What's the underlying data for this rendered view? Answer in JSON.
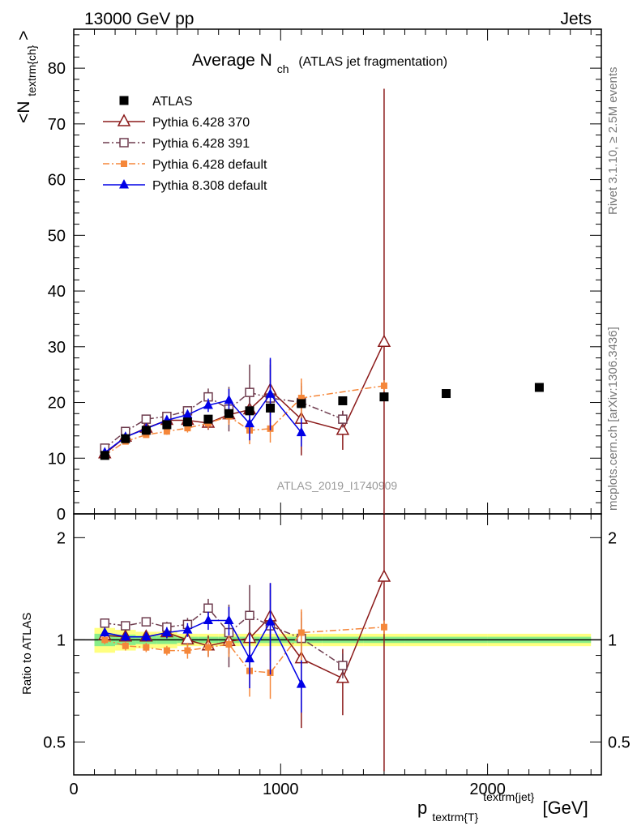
{
  "header": {
    "left": "13000 GeV pp",
    "right": "Jets"
  },
  "side_labels": {
    "rivet": "Rivet 3.1.10, ≥ 2.5M events",
    "mcplots": "mcplots.cern.ch [arXiv:1306.3436]"
  },
  "chart_data": [
    {
      "type": "scatter",
      "title_main": "Average N",
      "title_sub": "ch",
      "title_note": "(ATLAS jet fragmentation)",
      "ylabel": "<N",
      "ylabel_sub": "textrm{ch}",
      "ylabel_close": ">",
      "xlim": [
        0,
        2550
      ],
      "ylim": [
        0,
        87
      ],
      "yticks": [
        0,
        10,
        20,
        30,
        40,
        50,
        60,
        70,
        80
      ],
      "watermark": "ATLAS_2019_I1740909",
      "series": [
        {
          "name": "ATLAS",
          "color": "#000000",
          "marker": "filled-square",
          "line": "none",
          "x": [
            150,
            250,
            350,
            450,
            550,
            650,
            750,
            850,
            950,
            1100,
            1300,
            1500,
            1800,
            2250
          ],
          "y": [
            10.5,
            13.5,
            15.0,
            16.0,
            16.5,
            17.0,
            18.0,
            18.5,
            19.0,
            19.8,
            20.3,
            21.0,
            21.6,
            22.7
          ],
          "err": [
            0.3,
            0.3,
            0.3,
            0.3,
            0.3,
            0.3,
            0.3,
            0.3,
            0.3,
            0.3,
            0.3,
            0.3,
            0.3,
            0.3
          ],
          "ratio": [
            1,
            1,
            1,
            1,
            1,
            1,
            1,
            1,
            1,
            1,
            1,
            1,
            1,
            1
          ],
          "ratio_err": [
            0.06,
            0.05,
            0.04,
            0.04,
            0.03,
            0.03,
            0.03,
            0.03,
            0.03,
            0.03,
            0.03,
            0.03,
            0.03,
            0.03
          ]
        },
        {
          "name": "Pythia 6.428 370",
          "color": "#8b1a1a",
          "marker": "open-triangle",
          "line": "solid",
          "x": [
            150,
            250,
            350,
            450,
            550,
            650,
            750,
            850,
            950,
            1100,
            1300,
            1500
          ],
          "y": [
            10.8,
            13.8,
            15.4,
            16.8,
            16.8,
            16.3,
            17.8,
            18.7,
            22.2,
            17.0,
            15.0,
            30.8
          ],
          "err": [
            0.4,
            0.5,
            0.5,
            0.6,
            0.8,
            1.2,
            1.5,
            2.5,
            5.5,
            6.5,
            3.5,
            45.5
          ],
          "ratio": [
            1.03,
            1.02,
            1.02,
            1.05,
            1.0,
            0.96,
            0.99,
            1.01,
            1.17,
            0.88,
            0.77,
            1.53
          ],
          "ratio_err": [
            0.03,
            0.03,
            0.03,
            0.04,
            0.05,
            0.07,
            0.08,
            0.13,
            0.3,
            0.33,
            0.17,
            2.0
          ]
        },
        {
          "name": "Pythia 6.428 391",
          "color": "#6e3c4e",
          "marker": "open-square",
          "line": "dashdot",
          "x": [
            150,
            250,
            350,
            450,
            550,
            650,
            750,
            850,
            950,
            1100,
            1300
          ],
          "y": [
            11.8,
            14.8,
            17.0,
            17.5,
            18.5,
            21.0,
            18.8,
            21.8,
            20.8,
            20.0,
            17.0
          ],
          "err": [
            0.4,
            0.5,
            0.5,
            0.6,
            0.8,
            1.5,
            4.0,
            5.0,
            6.0,
            3.0,
            1.5
          ],
          "ratio": [
            1.12,
            1.1,
            1.13,
            1.09,
            1.11,
            1.24,
            1.05,
            1.18,
            1.1,
            1.01,
            0.84
          ],
          "ratio_err": [
            0.03,
            0.03,
            0.03,
            0.04,
            0.05,
            0.08,
            0.22,
            0.27,
            0.3,
            0.15,
            0.07
          ]
        },
        {
          "name": "Pythia 6.428 default",
          "color": "#f5873a",
          "marker": "filled-square-small",
          "line": "dashdot",
          "x": [
            150,
            250,
            350,
            450,
            550,
            650,
            750,
            850,
            950,
            1100,
            1500
          ],
          "y": [
            10.5,
            13.0,
            14.2,
            14.8,
            15.4,
            16.3,
            17.5,
            15.0,
            15.3,
            20.8,
            23.0
          ],
          "err": [
            0.4,
            0.5,
            0.5,
            0.6,
            0.8,
            1.0,
            1.5,
            2.5,
            2.5,
            3.5,
            1.0
          ],
          "ratio": [
            1.0,
            0.96,
            0.95,
            0.93,
            0.93,
            0.95,
            0.97,
            0.81,
            0.8,
            1.05,
            1.09
          ],
          "ratio_err": [
            0.03,
            0.03,
            0.03,
            0.03,
            0.05,
            0.06,
            0.08,
            0.13,
            0.13,
            0.18,
            0.05
          ]
        },
        {
          "name": "Pythia 8.308 default",
          "color": "#0000e6",
          "marker": "filled-triangle",
          "line": "solid",
          "x": [
            150,
            250,
            350,
            450,
            550,
            650,
            750,
            850,
            950,
            1100
          ],
          "y": [
            11.0,
            13.8,
            15.3,
            16.8,
            17.8,
            19.5,
            20.4,
            16.2,
            21.5,
            14.6
          ],
          "err": [
            0.4,
            0.5,
            0.5,
            0.6,
            0.8,
            1.2,
            2.0,
            3.0,
            6.5,
            2.5
          ],
          "ratio": [
            1.05,
            1.02,
            1.02,
            1.05,
            1.07,
            1.14,
            1.14,
            0.88,
            1.13,
            0.74
          ],
          "ratio_err": [
            0.03,
            0.03,
            0.03,
            0.04,
            0.05,
            0.07,
            0.11,
            0.16,
            0.34,
            0.13
          ]
        }
      ]
    },
    {
      "type": "scatter",
      "ylabel": "Ratio to ATLAS",
      "ylim": [
        0.4,
        2.35
      ],
      "yscale": "log",
      "yticks": [
        0.5,
        1,
        2
      ],
      "xticks": [
        0,
        1000,
        2000
      ],
      "xlabel": "p",
      "xlabel_sub": "textrm{T}",
      "xlabel_sup": "textrm{jet}",
      "xlabel_unit": "[GeV]"
    }
  ]
}
